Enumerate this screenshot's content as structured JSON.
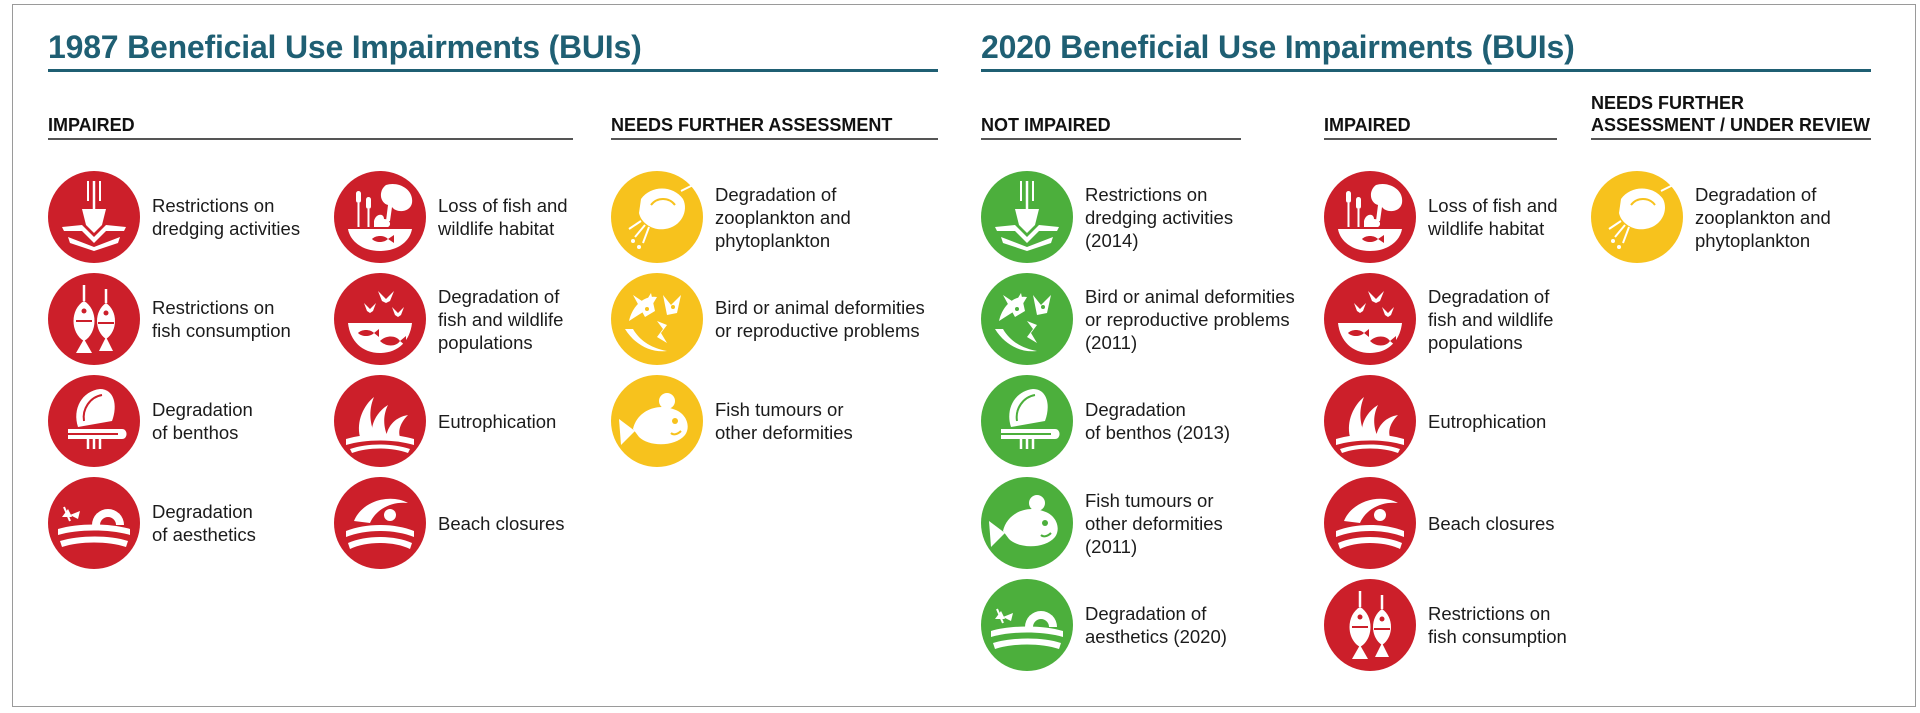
{
  "colors": {
    "impaired": "#cc1f2a",
    "needs_assessment": "#f7c21d",
    "not_impaired": "#4caf3c",
    "title": "#1f5f73"
  },
  "panel_1987": {
    "title": "1987 Beneficial Use Impairments (BUIs)",
    "impaired_heading": "IMPAIRED",
    "assessment_heading": "NEEDS FURTHER ASSESSMENT",
    "impaired_col1": [
      {
        "label": "Restrictions on\ndredging activities",
        "icon": "dredging-icon"
      },
      {
        "label": "Restrictions on\nfish consumption",
        "icon": "fish-consumption-icon"
      },
      {
        "label": "Degradation\nof benthos",
        "icon": "benthos-icon"
      },
      {
        "label": "Degradation\nof aesthetics",
        "icon": "aesthetics-icon"
      }
    ],
    "impaired_col2": [
      {
        "label": "Loss of fish and\nwildlife habitat",
        "icon": "habitat-icon"
      },
      {
        "label": "Degradation of\nfish and wildlife\npopulations",
        "icon": "populations-icon"
      },
      {
        "label": "Eutrophication",
        "icon": "eutrophication-icon"
      },
      {
        "label": "Beach closures",
        "icon": "beach-closures-icon"
      }
    ],
    "assessment": [
      {
        "label": "Degradation of\nzooplankton and\nphytoplankton",
        "icon": "plankton-icon"
      },
      {
        "label": "Bird or animal deformities\nor reproductive problems",
        "icon": "deformities-icon"
      },
      {
        "label": "Fish tumours or\nother deformities",
        "icon": "fish-tumour-icon"
      }
    ]
  },
  "panel_2020": {
    "title": "2020 Beneficial Use Impairments (BUIs)",
    "not_impaired_heading": "NOT IMPAIRED",
    "impaired_heading": "IMPAIRED",
    "review_heading_line1": "NEEDS FURTHER",
    "review_heading_line2": "ASSESSMENT / UNDER REVIEW",
    "not_impaired": [
      {
        "label": "Restrictions on\ndredging activities\n(2014)",
        "icon": "dredging-icon"
      },
      {
        "label": "Bird or animal deformities\nor reproductive problems\n(2011)",
        "icon": "deformities-icon"
      },
      {
        "label": "Degradation\nof benthos (2013)",
        "icon": "benthos-icon"
      },
      {
        "label": "Fish tumours or\nother deformities\n(2011)",
        "icon": "fish-tumour-icon"
      },
      {
        "label": "Degradation of\naesthetics (2020)",
        "icon": "aesthetics-icon"
      }
    ],
    "impaired": [
      {
        "label": "Loss of fish and\nwildlife habitat",
        "icon": "habitat-icon"
      },
      {
        "label": "Degradation of\nfish and wildlife\npopulations",
        "icon": "populations-icon"
      },
      {
        "label": "Eutrophication",
        "icon": "eutrophication-icon"
      },
      {
        "label": "Beach closures",
        "icon": "beach-closures-icon"
      },
      {
        "label": "Restrictions on\nfish consumption",
        "icon": "fish-consumption-icon"
      }
    ],
    "review": [
      {
        "label": "Degradation of\nzooplankton and\nphytoplankton",
        "icon": "plankton-icon"
      }
    ]
  }
}
